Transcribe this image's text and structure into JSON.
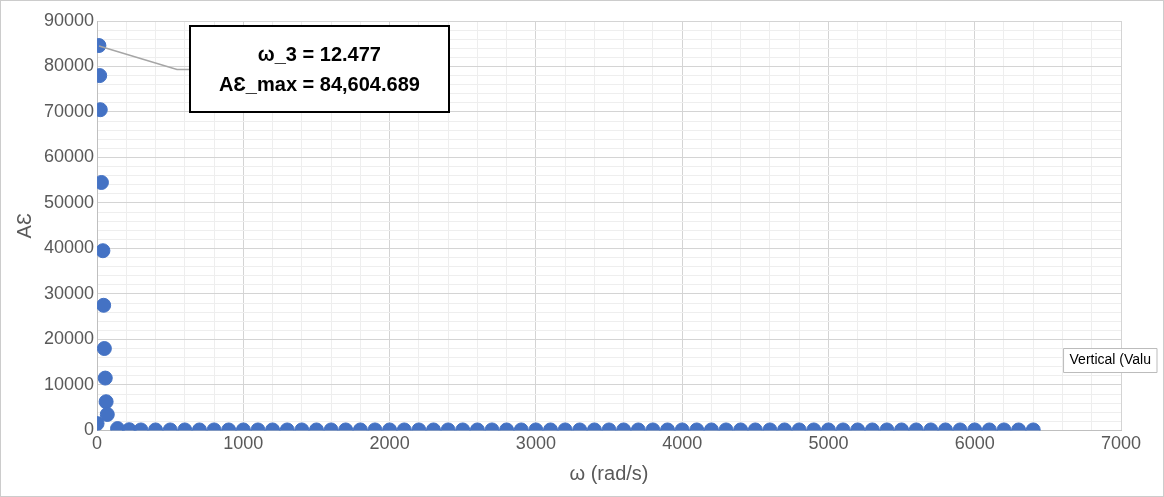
{
  "chart_data": {
    "type": "scatter",
    "xlabel": "ω (rad/s)",
    "ylabel": "AƐ",
    "series": [
      {
        "color": "#4472c4",
        "x": [
          0,
          12.477,
          18,
          22,
          30,
          40,
          45,
          50,
          56,
          62,
          70,
          140,
          220,
          300,
          400,
          500,
          600,
          700,
          800,
          900,
          1000,
          1100,
          1200,
          1300,
          1400,
          1500,
          1600,
          1700,
          1800,
          1900,
          2000,
          2100,
          2200,
          2300,
          2400,
          2500,
          2600,
          2700,
          2800,
          2900,
          3000,
          3100,
          3200,
          3300,
          3400,
          3500,
          3600,
          3700,
          3800,
          3900,
          4000,
          4100,
          4200,
          4300,
          4400,
          4500,
          4600,
          4700,
          4800,
          4900,
          5000,
          5100,
          5200,
          5300,
          5400,
          5500,
          5600,
          5700,
          5800,
          5900,
          6000,
          6100,
          6200,
          6300,
          6400
        ],
        "values": [
          1500,
          84604.689,
          78000,
          70500,
          54500,
          39500,
          27500,
          18000,
          11500,
          6300,
          3500,
          400,
          150,
          100,
          100,
          100,
          100,
          100,
          100,
          100,
          100,
          100,
          100,
          100,
          100,
          100,
          100,
          100,
          100,
          100,
          100,
          100,
          100,
          100,
          100,
          100,
          100,
          100,
          100,
          100,
          100,
          100,
          100,
          100,
          100,
          100,
          100,
          100,
          100,
          100,
          100,
          100,
          100,
          100,
          100,
          100,
          100,
          100,
          100,
          100,
          100,
          100,
          100,
          100,
          100,
          100,
          100,
          100,
          100,
          100,
          100,
          100,
          100,
          100,
          100
        ]
      }
    ],
    "xlim": [
      0,
      7000
    ],
    "ylim": [
      0,
      90000
    ],
    "xticks": [
      0,
      {
        "value": 200,
        "label": null
      },
      {
        "value": 400,
        "label": null
      },
      {
        "value": 600,
        "label": null
      },
      {
        "value": 800,
        "label": null
      },
      1000,
      {
        "value": 1200,
        "label": null
      },
      {
        "value": 1400,
        "label": null
      },
      {
        "value": 1600,
        "label": null
      },
      {
        "value": 1800,
        "label": null
      },
      2000,
      {
        "value": 2200,
        "label": null
      },
      {
        "value": 2400,
        "label": null
      },
      {
        "value": 2600,
        "label": null
      },
      {
        "value": 2800,
        "label": null
      },
      3000,
      {
        "value": 3200,
        "label": null
      },
      {
        "value": 3400,
        "label": null
      },
      {
        "value": 3600,
        "label": null
      },
      {
        "value": 3800,
        "label": null
      },
      4000,
      {
        "value": 4200,
        "label": null
      },
      {
        "value": 4400,
        "label": null
      },
      {
        "value": 4600,
        "label": null
      },
      {
        "value": 4800,
        "label": null
      },
      5000,
      {
        "value": 5200,
        "label": null
      },
      {
        "value": 5400,
        "label": null
      },
      {
        "value": 5600,
        "label": null
      },
      {
        "value": 5800,
        "label": null
      },
      6000,
      {
        "value": 6200,
        "label": null
      },
      {
        "value": 6400,
        "label": null
      },
      {
        "value": 6600,
        "label": null
      },
      {
        "value": 6800,
        "label": null
      },
      7000
    ],
    "yticks": [
      0,
      {
        "value": 2000,
        "label": null
      },
      {
        "value": 4000,
        "label": null
      },
      {
        "value": 6000,
        "label": null
      },
      {
        "value": 8000,
        "label": null
      },
      10000,
      {
        "value": 12000,
        "label": null
      },
      {
        "value": 14000,
        "label": null
      },
      {
        "value": 16000,
        "label": null
      },
      {
        "value": 18000,
        "label": null
      },
      20000,
      {
        "value": 22000,
        "label": null
      },
      {
        "value": 24000,
        "label": null
      },
      {
        "value": 26000,
        "label": null
      },
      {
        "value": 28000,
        "label": null
      },
      30000,
      {
        "value": 32000,
        "label": null
      },
      {
        "value": 34000,
        "label": null
      },
      {
        "value": 36000,
        "label": null
      },
      {
        "value": 38000,
        "label": null
      },
      40000,
      {
        "value": 42000,
        "label": null
      },
      {
        "value": 44000,
        "label": null
      },
      {
        "value": 46000,
        "label": null
      },
      {
        "value": 48000,
        "label": null
      },
      50000,
      {
        "value": 52000,
        "label": null
      },
      {
        "value": 54000,
        "label": null
      },
      {
        "value": 56000,
        "label": null
      },
      {
        "value": 58000,
        "label": null
      },
      60000,
      {
        "value": 62000,
        "label": null
      },
      {
        "value": 64000,
        "label": null
      },
      {
        "value": 66000,
        "label": null
      },
      {
        "value": 68000,
        "label": null
      },
      70000,
      {
        "value": 72000,
        "label": null
      },
      {
        "value": 74000,
        "label": null
      },
      {
        "value": 76000,
        "label": null
      },
      {
        "value": 78000,
        "label": null
      },
      80000,
      {
        "value": 82000,
        "label": null
      },
      {
        "value": 84000,
        "label": null
      },
      {
        "value": 86000,
        "label": null
      },
      {
        "value": 88000,
        "label": null
      },
      90000
    ],
    "grid": true,
    "marker": "circle",
    "annotations": [
      "ω_3 = 12.477\nAƐ_max = 84,604.689",
      "Vertical (Valu"
    ]
  }
}
